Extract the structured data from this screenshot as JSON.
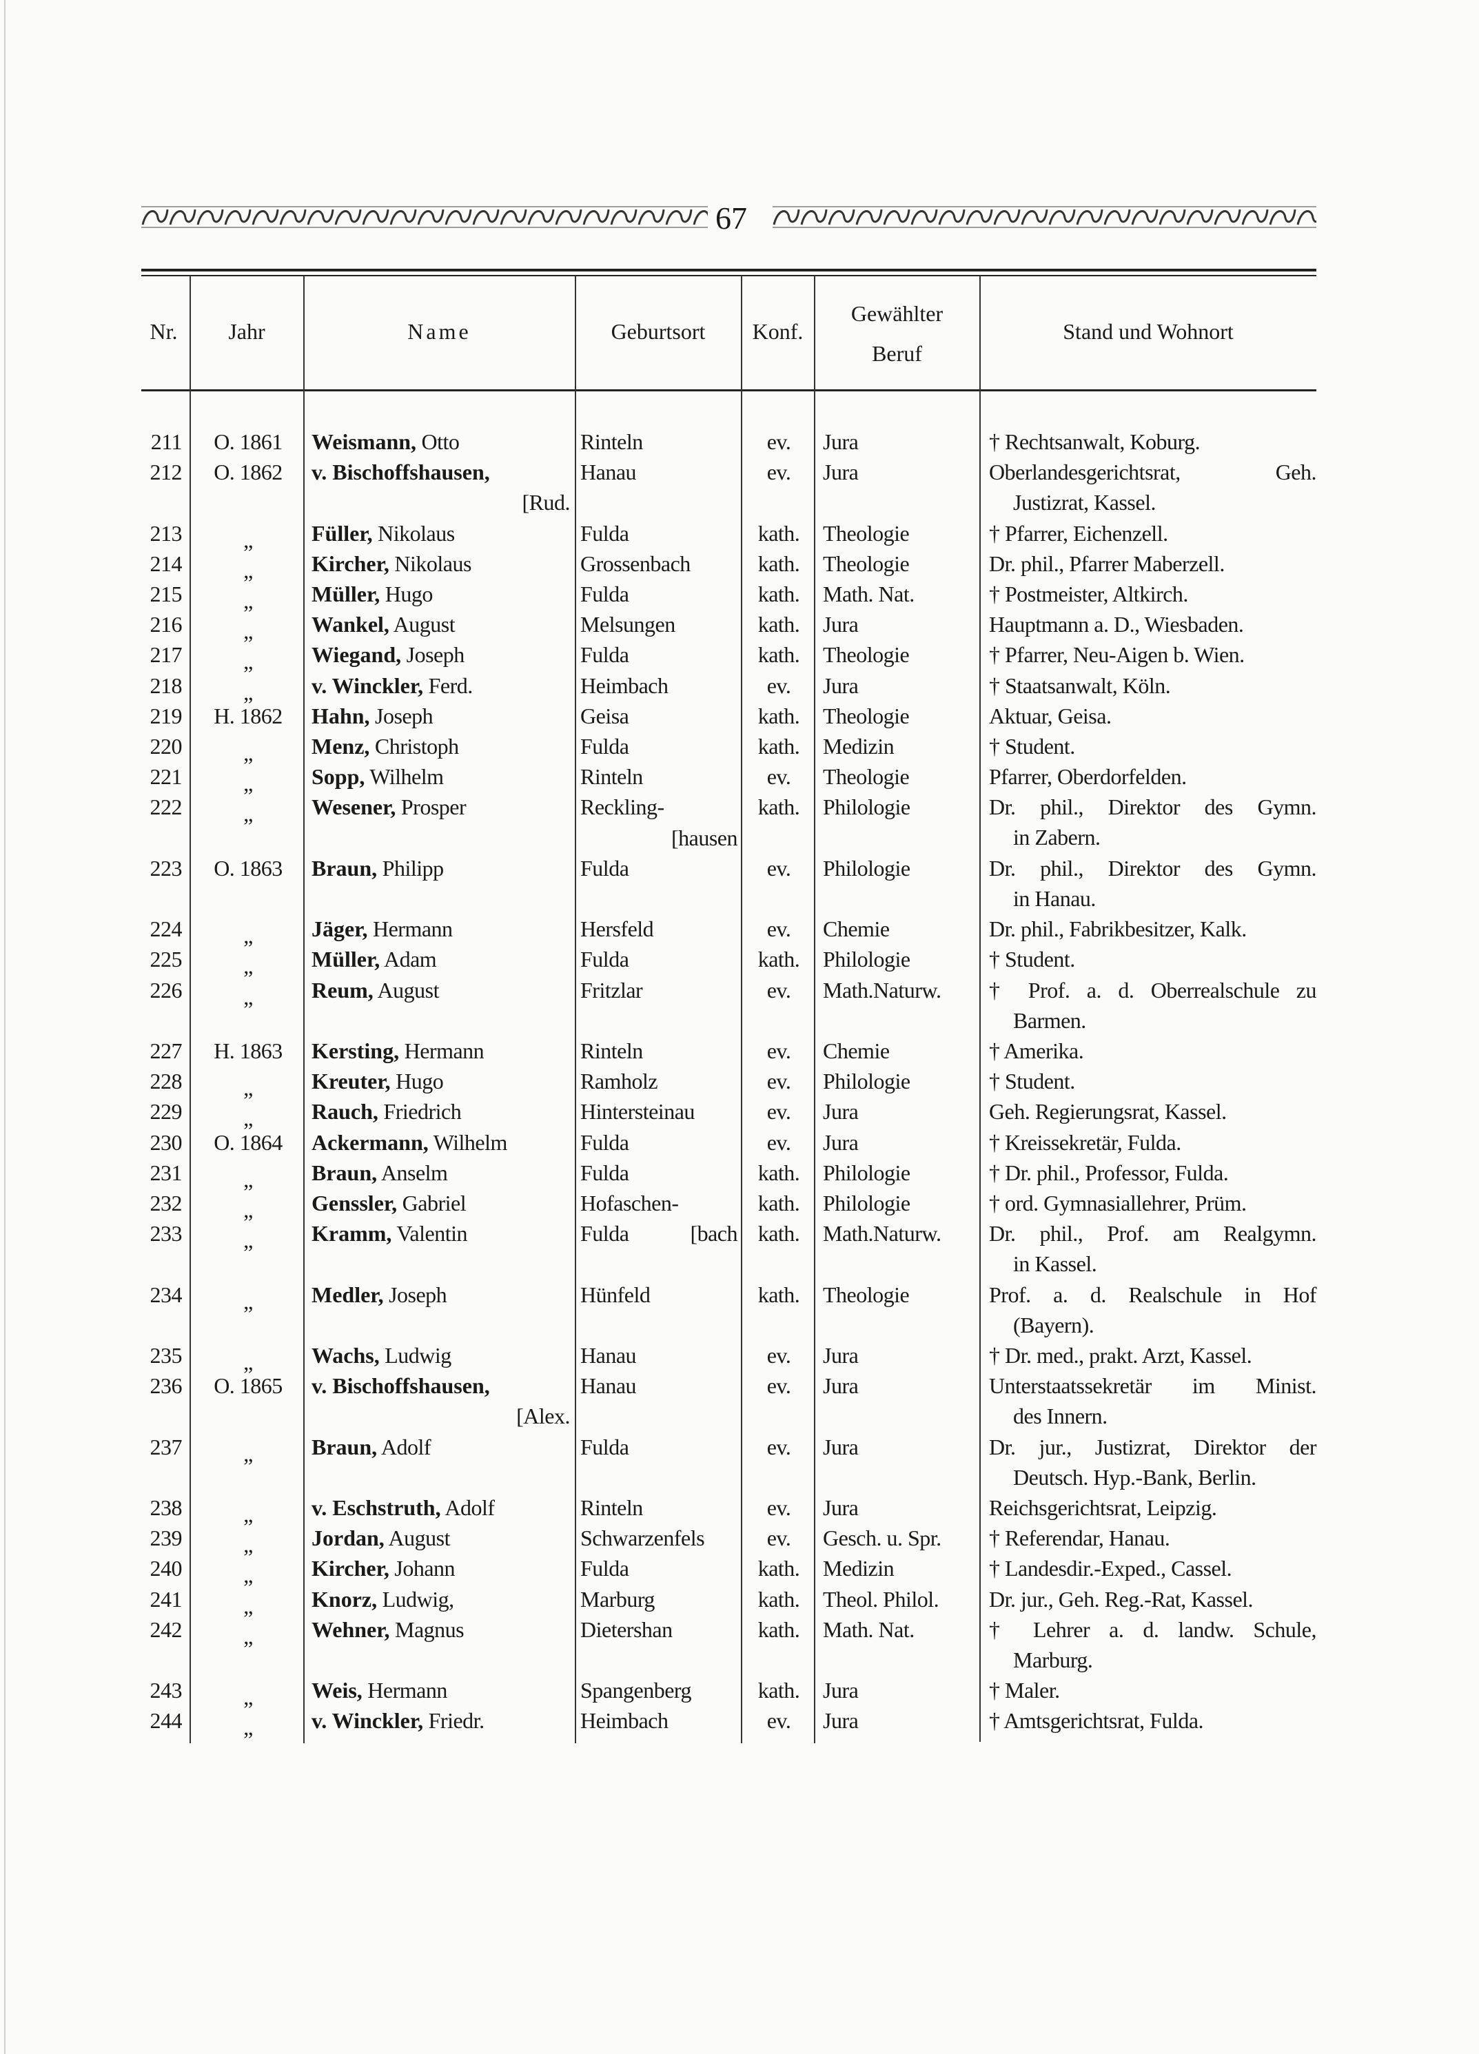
{
  "page_number": "67",
  "header": {
    "nr": "Nr.",
    "jahr": "Jahr",
    "name": "Name",
    "geburtsort": "Geburtsort",
    "konf": "Konf.",
    "beruf_line1": "Gewählter",
    "beruf_line2": "Beruf",
    "stand": "Stand und Wohnort"
  },
  "rows": [
    {
      "nr": "211",
      "jahr": "O. 1861",
      "name_bold": "Weismann,",
      "name_rest": " Otto",
      "ort": "Rinteln",
      "konf": "ev.",
      "beruf": "Jura",
      "stand": [
        "† Rechtsanwalt, Koburg."
      ]
    },
    {
      "nr": "212",
      "jahr": "O. 1862",
      "name_bold": "v. Bischoffshausen,",
      "name_rest": "",
      "name_cont": "[Rud.",
      "ort": "Hanau",
      "konf": "ev.",
      "beruf": "Jura",
      "stand": [
        "Oberlandesgerichtsrat, Geh.",
        "Justizrat, Kassel."
      ]
    },
    {
      "nr": "213",
      "jahr": "„",
      "name_bold": "Füller,",
      "name_rest": " Nikolaus",
      "ort": "Fulda",
      "konf": "kath.",
      "beruf": "Theologie",
      "stand": [
        "† Pfarrer, Eichenzell."
      ]
    },
    {
      "nr": "214",
      "jahr": "„",
      "name_bold": "Kircher,",
      "name_rest": " Nikolaus",
      "ort": "Grossenbach",
      "konf": "kath.",
      "beruf": "Theologie",
      "stand": [
        "Dr. phil., Pfarrer Maberzell."
      ]
    },
    {
      "nr": "215",
      "jahr": "„",
      "name_bold": "Müller,",
      "name_rest": " Hugo",
      "ort": "Fulda",
      "konf": "kath.",
      "beruf": "Math. Nat.",
      "stand": [
        "† Postmeister, Altkirch."
      ]
    },
    {
      "nr": "216",
      "jahr": "„",
      "name_bold": "Wankel,",
      "name_rest": " August",
      "ort": "Melsungen",
      "konf": "kath.",
      "beruf": "Jura",
      "stand": [
        "Hauptmann a. D., Wiesbaden."
      ]
    },
    {
      "nr": "217",
      "jahr": "„",
      "name_bold": "Wiegand,",
      "name_rest": " Joseph",
      "ort": "Fulda",
      "konf": "kath.",
      "beruf": "Theologie",
      "stand": [
        "† Pfarrer, Neu-Aigen b. Wien."
      ]
    },
    {
      "nr": "218",
      "jahr": "„",
      "name_bold": "v. Winckler,",
      "name_rest": " Ferd.",
      "ort": "Heimbach",
      "konf": "ev.",
      "beruf": "Jura",
      "stand": [
        "† Staatsanwalt, Köln."
      ]
    },
    {
      "nr": "219",
      "jahr": "H. 1862",
      "name_bold": "Hahn,",
      "name_rest": " Joseph",
      "ort": "Geisa",
      "konf": "kath.",
      "beruf": "Theologie",
      "stand": [
        "Aktuar, Geisa."
      ]
    },
    {
      "nr": "220",
      "jahr": "„",
      "name_bold": "Menz,",
      "name_rest": " Christoph",
      "ort": "Fulda",
      "konf": "kath.",
      "beruf": "Medizin",
      "stand": [
        "† Student."
      ]
    },
    {
      "nr": "221",
      "jahr": "„",
      "name_bold": "Sopp,",
      "name_rest": " Wilhelm",
      "ort": "Rinteln",
      "konf": "ev.",
      "beruf": "Theologie",
      "stand": [
        "Pfarrer, Oberdorfelden."
      ]
    },
    {
      "nr": "222",
      "jahr": "„",
      "name_bold": "Wesener,",
      "name_rest": " Prosper",
      "ort": "Reckling-",
      "ort_cont": "[hausen",
      "konf": "kath.",
      "beruf": "Philologie",
      "stand": [
        "Dr. phil., Direktor des Gymn.",
        "in Zabern."
      ]
    },
    {
      "nr": "223",
      "jahr": "O. 1863",
      "name_bold": "Braun,",
      "name_rest": " Philipp",
      "ort": "Fulda",
      "konf": "ev.",
      "beruf": "Philologie",
      "stand": [
        "Dr. phil., Direktor des Gymn.",
        "in Hanau."
      ]
    },
    {
      "nr": "224",
      "jahr": "„",
      "name_bold": "Jäger,",
      "name_rest": " Hermann",
      "ort": "Hersfeld",
      "konf": "ev.",
      "beruf": "Chemie",
      "stand": [
        "Dr. phil., Fabrikbesitzer, Kalk."
      ]
    },
    {
      "nr": "225",
      "jahr": "„",
      "name_bold": "Müller,",
      "name_rest": " Adam",
      "ort": "Fulda",
      "konf": "kath.",
      "beruf": "Philologie",
      "stand": [
        "† Student."
      ]
    },
    {
      "nr": "226",
      "jahr": "„",
      "name_bold": "Reum,",
      "name_rest": " August",
      "ort": "Fritzlar",
      "konf": "ev.",
      "beruf": "Math.Naturw.",
      "stand": [
        "† Prof. a. d. Oberrealschule zu",
        "Barmen."
      ]
    },
    {
      "nr": "227",
      "jahr": "H. 1863",
      "name_bold": "Kersting,",
      "name_rest": " Hermann",
      "ort": "Rinteln",
      "konf": "ev.",
      "beruf": "Chemie",
      "stand": [
        "† Amerika."
      ]
    },
    {
      "nr": "228",
      "jahr": "„",
      "name_bold": "Kreuter,",
      "name_rest": " Hugo",
      "ort": "Ramholz",
      "konf": "ev.",
      "beruf": "Philologie",
      "stand": [
        "† Student."
      ]
    },
    {
      "nr": "229",
      "jahr": "„",
      "name_bold": "Rauch,",
      "name_rest": " Friedrich",
      "ort": "Hintersteinau",
      "konf": "ev.",
      "beruf": "Jura",
      "stand": [
        "Geh. Regierungsrat, Kassel."
      ]
    },
    {
      "nr": "230",
      "jahr": "O. 1864",
      "name_bold": "Ackermann,",
      "name_rest": " Wilhelm",
      "ort": "Fulda",
      "konf": "ev.",
      "beruf": "Jura",
      "stand": [
        "† Kreissekretär, Fulda."
      ]
    },
    {
      "nr": "231",
      "jahr": "„",
      "name_bold": "Braun,",
      "name_rest": " Anselm",
      "ort": "Fulda",
      "konf": "kath.",
      "beruf": "Philologie",
      "stand": [
        "† Dr. phil., Professor, Fulda."
      ]
    },
    {
      "nr": "232",
      "jahr": "„",
      "name_bold": "Genssler,",
      "name_rest": " Gabriel",
      "ort": "Hofaschen-",
      "konf": "kath.",
      "beruf": "Philologie",
      "stand": [
        "† ord. Gymnasiallehrer, Prüm."
      ]
    },
    {
      "nr": "233",
      "jahr": "„",
      "name_bold": "Kramm,",
      "name_rest": " Valentin",
      "ort": "Fulda",
      "ort_inline_cont": "[bach",
      "konf": "kath.",
      "beruf": "Math.Naturw.",
      "stand": [
        "Dr. phil., Prof. am Realgymn.",
        "in Kassel."
      ]
    },
    {
      "nr": "234",
      "jahr": "„",
      "name_bold": "Medler,",
      "name_rest": " Joseph",
      "ort": "Hünfeld",
      "konf": "kath.",
      "beruf": "Theologie",
      "stand": [
        "Prof. a. d. Realschule in Hof",
        "(Bayern)."
      ]
    },
    {
      "nr": "235",
      "jahr": "„",
      "name_bold": "Wachs,",
      "name_rest": " Ludwig",
      "ort": "Hanau",
      "konf": "ev.",
      "beruf": "Jura",
      "stand": [
        "† Dr. med., prakt. Arzt, Kassel."
      ]
    },
    {
      "nr": "236",
      "jahr": "O. 1865",
      "name_bold": "v. Bischoffshausen,",
      "name_rest": "",
      "name_cont": "[Alex.",
      "ort": "Hanau",
      "konf": "ev.",
      "beruf": "Jura",
      "stand": [
        "Unterstaatssekretär im Minist.",
        "des Innern."
      ]
    },
    {
      "nr": "237",
      "jahr": "„",
      "name_bold": "Braun,",
      "name_rest": " Adolf",
      "ort": "Fulda",
      "konf": "ev.",
      "beruf": "Jura",
      "stand": [
        "Dr. jur., Justizrat, Direktor der",
        "Deutsch. Hyp.-Bank, Berlin."
      ]
    },
    {
      "nr": "238",
      "jahr": "„",
      "name_bold": "v. Eschstruth,",
      "name_rest": " Adolf",
      "ort": "Rinteln",
      "konf": "ev.",
      "beruf": "Jura",
      "stand": [
        "Reichsgerichtsrat, Leipzig."
      ]
    },
    {
      "nr": "239",
      "jahr": "„",
      "name_bold": "Jordan,",
      "name_rest": " August",
      "ort": "Schwarzenfels",
      "konf": "ev.",
      "beruf": "Gesch. u. Spr.",
      "stand": [
        "† Referendar, Hanau."
      ]
    },
    {
      "nr": "240",
      "jahr": "„",
      "name_bold": "Kircher,",
      "name_rest": " Johann",
      "ort": "Fulda",
      "konf": "kath.",
      "beruf": "Medizin",
      "stand": [
        "† Landesdir.-Exped., Cassel."
      ]
    },
    {
      "nr": "241",
      "jahr": "„",
      "name_bold": "Knorz,",
      "name_rest": " Ludwig,",
      "ort": "Marburg",
      "konf": "kath.",
      "beruf": "Theol. Philol.",
      "stand": [
        "Dr. jur., Geh. Reg.-Rat, Kassel."
      ]
    },
    {
      "nr": "242",
      "jahr": "„",
      "name_bold": "Wehner,",
      "name_rest": " Magnus",
      "ort": "Dietershan",
      "konf": "kath.",
      "beruf": "Math. Nat.",
      "stand": [
        "† Lehrer a. d. landw. Schule,",
        "Marburg."
      ]
    },
    {
      "nr": "243",
      "jahr": "„",
      "name_bold": "Weis,",
      "name_rest": " Hermann",
      "ort": "Spangenberg",
      "konf": "kath.",
      "beruf": "Jura",
      "stand": [
        "† Maler."
      ]
    },
    {
      "nr": "244",
      "jahr": "„",
      "name_bold": "v. Winckler,",
      "name_rest": " Friedr.",
      "ort": "Heimbach",
      "konf": "ev.",
      "beruf": "Jura",
      "stand": [
        "† Amtsgerichtsrat, Fulda."
      ]
    }
  ]
}
